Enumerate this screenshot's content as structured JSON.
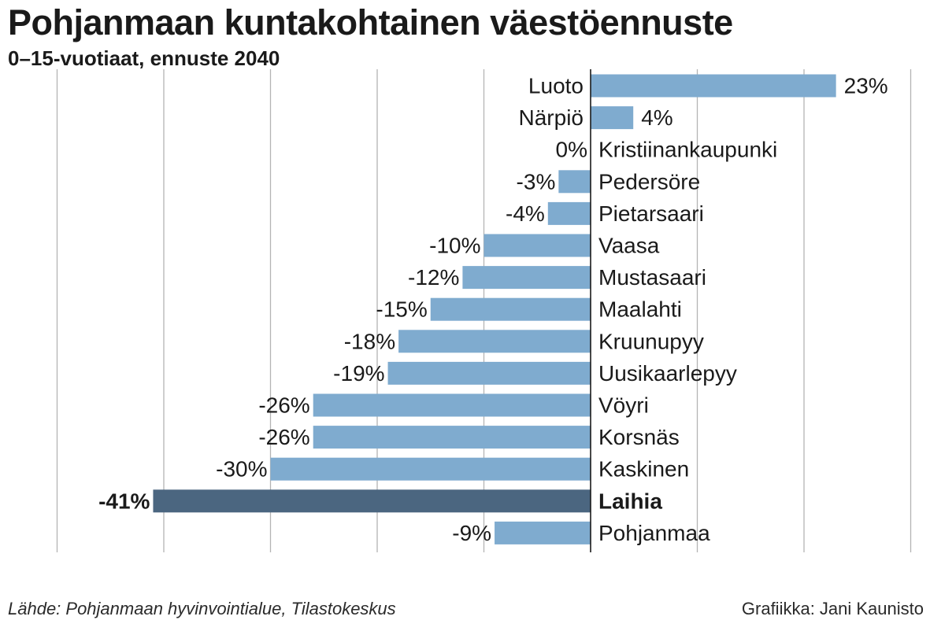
{
  "chart_data": {
    "type": "bar",
    "orientation": "horizontal",
    "title": "Pohjanmaan kuntakohtainen väestöennuste",
    "subtitle": "0–15-vuotiaat, ennuste 2040",
    "xlim": [
      -50,
      30
    ],
    "grid": true,
    "categories": [
      "Luoto",
      "Närpiö",
      "Kristiinankaupunki",
      "Pedersöre",
      "Pietarsaari",
      "Vaasa",
      "Mustasaari",
      "Maalahti",
      "Kruunupyy",
      "Uusikaarlepyy",
      "Vöyri",
      "Korsnäs",
      "Kaskinen",
      "Laihia",
      "Pohjanmaa"
    ],
    "values": [
      23,
      4,
      0,
      -3,
      -4,
      -10,
      -12,
      -15,
      -18,
      -19,
      -26,
      -26,
      -30,
      -41,
      -9
    ],
    "value_labels": [
      "23%",
      "4%",
      "0%",
      "-3%",
      "-4%",
      "-10%",
      "-12%",
      "-15%",
      "-18%",
      "-19%",
      "-26%",
      "-26%",
      "-30%",
      "-41%",
      "-9%"
    ],
    "highlight": "Laihia",
    "colors": {
      "bar": "#7fabcf",
      "highlight": "#4b6680",
      "grid": "#b4b4b4",
      "axis": "#1a1a1a",
      "text": "#1a1a1a"
    }
  },
  "footer": {
    "source": "Lähde: Pohjanmaan hyvinvointialue, Tilastokeskus",
    "credit": "Grafiikka: Jani Kaunisto"
  }
}
